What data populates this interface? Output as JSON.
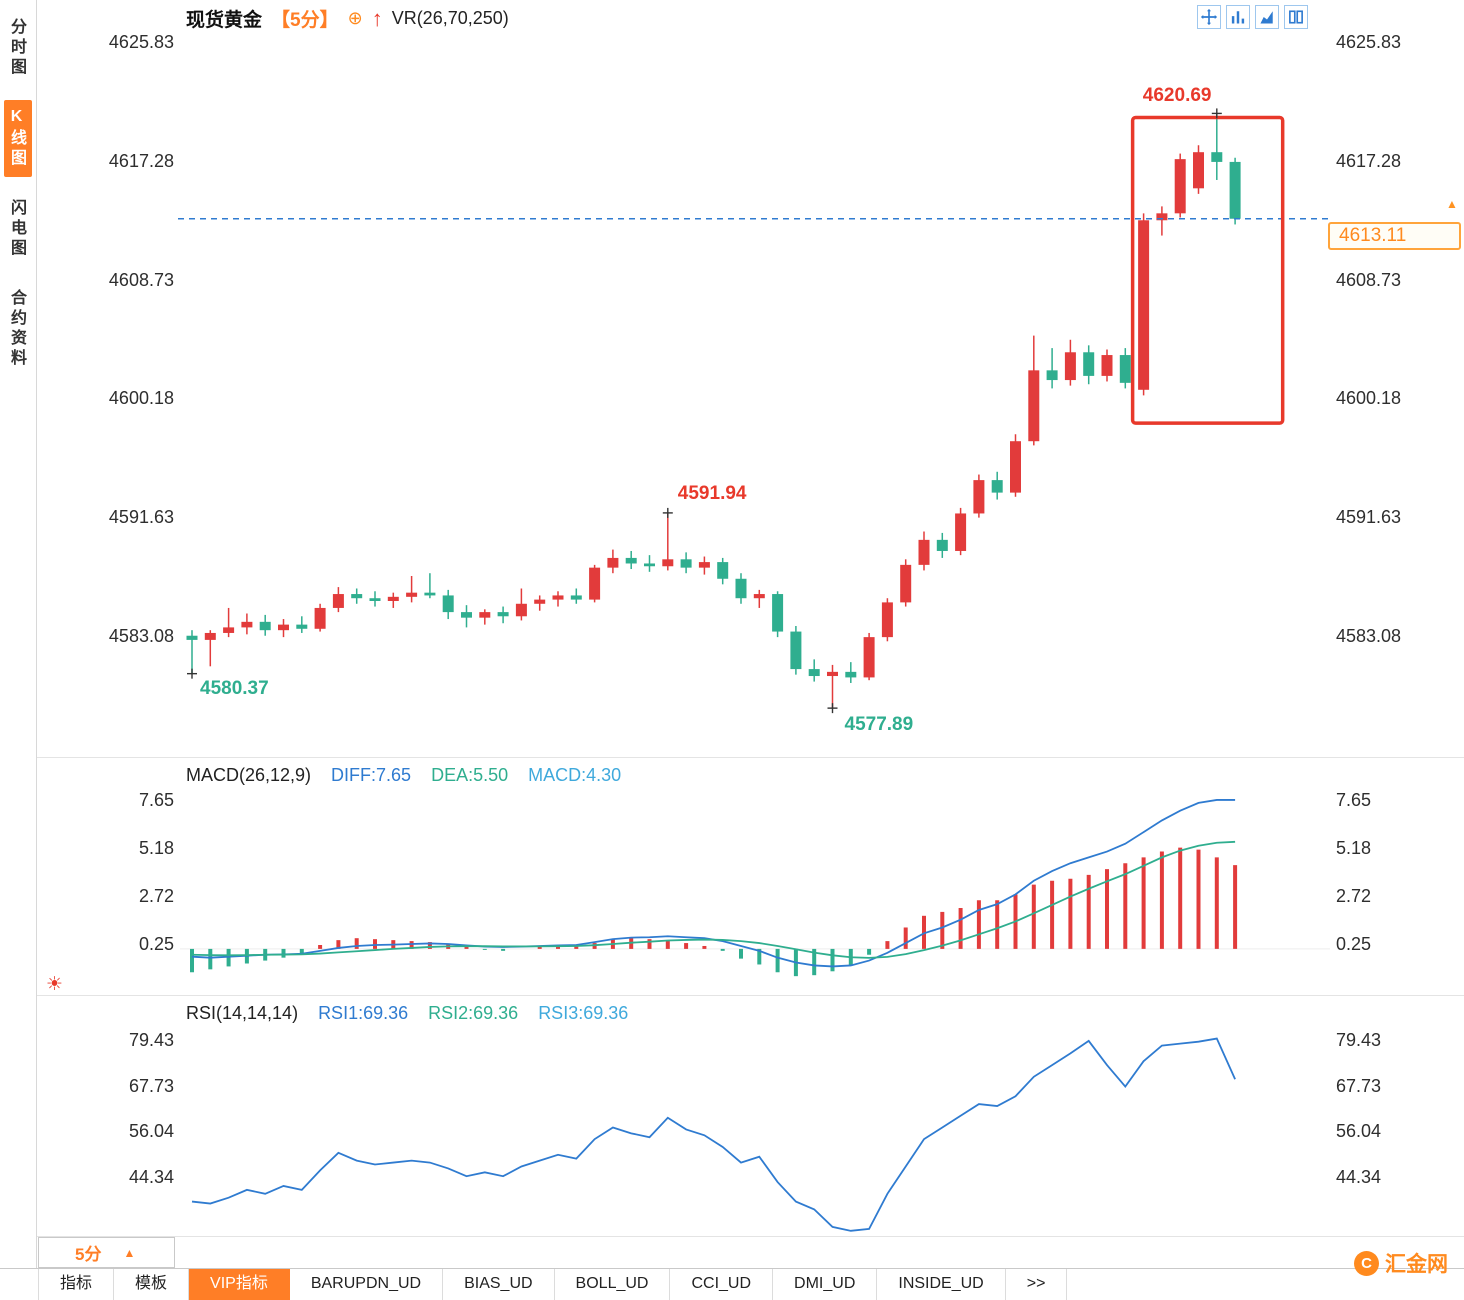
{
  "colors": {
    "up": "#e23b3b",
    "down": "#2fae8f",
    "accent_orange": "#ff7e26",
    "diff_line": "#2f7bd0",
    "dea_line": "#2fae8f",
    "macd_label": "#3fa9dc",
    "dashed_line": "#2f7bd0",
    "highlight_box": "#e8392b",
    "axis_text": "#2e2e2e"
  },
  "icons": {
    "settings": "☀"
  },
  "sidebar": {
    "items": [
      {
        "name": "time-chart",
        "label": "分时图",
        "active": false
      },
      {
        "name": "kline-chart",
        "label": "K线图",
        "active": true
      },
      {
        "name": "lightning-chart",
        "label": "闪电图",
        "active": false
      },
      {
        "name": "contract-info",
        "label": "合约资料",
        "active": false
      }
    ]
  },
  "header": {
    "symbol": "现货黄金",
    "period": "【5分】",
    "plus_icon": "⊕",
    "up_arrow": "↑",
    "indicator": "VR(26,70,250)"
  },
  "toolbar_icons": [
    {
      "name": "crosshair-icon"
    },
    {
      "name": "bar-chart-icon"
    },
    {
      "name": "area-chart-icon"
    },
    {
      "name": "compare-columns-icon"
    }
  ],
  "price_tag": {
    "value": "4613.11",
    "marker": "▲"
  },
  "bottom": {
    "period_label": "5分",
    "period_arrow": "▲",
    "tabs": [
      {
        "name": "indicators",
        "label": "指标"
      },
      {
        "name": "templates",
        "label": "模板"
      },
      {
        "name": "vip-indicators",
        "label": "VIP指标",
        "active": true
      },
      {
        "name": "barupdn-ud",
        "label": "BARUPDN_UD"
      },
      {
        "name": "bias-ud",
        "label": "BIAS_UD"
      },
      {
        "name": "boll-ud",
        "label": "BOLL_UD"
      },
      {
        "name": "cci-ud",
        "label": "CCI_UD"
      },
      {
        "name": "dmi-ud",
        "label": "DMI_UD"
      },
      {
        "name": "inside-ud",
        "label": "INSIDE_UD"
      },
      {
        "name": "more",
        "label": ">>"
      }
    ]
  },
  "logo": {
    "icon": "C",
    "text": "汇金网"
  },
  "chart_data": [
    {
      "type": "candlestick",
      "title": "现货黄金 5分",
      "y_ticks": [
        4625.83,
        4617.28,
        4608.73,
        4600.18,
        4591.63,
        4583.08
      ],
      "current_price": 4613.11,
      "candles": [
        [
          4583.1,
          4583.5,
          4580.37,
          4582.8
        ],
        [
          4582.8,
          4583.5,
          4580.9,
          4583.3
        ],
        [
          4583.3,
          4585.1,
          4583.0,
          4583.7
        ],
        [
          4583.7,
          4584.7,
          4583.2,
          4584.1
        ],
        [
          4584.1,
          4584.6,
          4583.1,
          4583.5
        ],
        [
          4583.5,
          4584.3,
          4583.0,
          4583.9
        ],
        [
          4583.9,
          4584.5,
          4583.3,
          4583.6
        ],
        [
          4583.6,
          4585.4,
          4583.4,
          4585.1
        ],
        [
          4585.1,
          4586.6,
          4584.8,
          4586.1
        ],
        [
          4586.1,
          4586.5,
          4585.4,
          4585.8
        ],
        [
          4585.8,
          4586.3,
          4585.2,
          4585.6
        ],
        [
          4585.6,
          4586.2,
          4585.1,
          4585.9
        ],
        [
          4585.9,
          4587.4,
          4585.5,
          4586.2
        ],
        [
          4586.2,
          4587.6,
          4585.8,
          4586.0
        ],
        [
          4586.0,
          4586.4,
          4584.3,
          4584.8
        ],
        [
          4584.8,
          4585.3,
          4583.7,
          4584.4
        ],
        [
          4584.4,
          4585.0,
          4583.9,
          4584.8
        ],
        [
          4584.8,
          4585.2,
          4584.0,
          4584.5
        ],
        [
          4584.5,
          4586.5,
          4584.2,
          4585.4
        ],
        [
          4585.4,
          4586.0,
          4584.9,
          4585.7
        ],
        [
          4585.7,
          4586.3,
          4585.2,
          4586.0
        ],
        [
          4586.0,
          4586.5,
          4585.4,
          4585.7
        ],
        [
          4585.7,
          4588.2,
          4585.5,
          4588.0
        ],
        [
          4588.0,
          4589.3,
          4587.6,
          4588.7
        ],
        [
          4588.7,
          4589.2,
          4587.9,
          4588.3
        ],
        [
          4588.3,
          4588.9,
          4587.7,
          4588.1
        ],
        [
          4588.1,
          4591.94,
          4587.8,
          4588.6
        ],
        [
          4588.6,
          4589.1,
          4587.6,
          4588.0
        ],
        [
          4588.0,
          4588.8,
          4587.5,
          4588.4
        ],
        [
          4588.4,
          4588.7,
          4586.8,
          4587.2
        ],
        [
          4587.2,
          4587.6,
          4585.4,
          4585.8
        ],
        [
          4585.8,
          4586.4,
          4585.1,
          4586.1
        ],
        [
          4586.1,
          4586.3,
          4583.0,
          4583.4
        ],
        [
          4583.4,
          4583.8,
          4580.3,
          4580.7
        ],
        [
          4580.7,
          4581.4,
          4579.8,
          4580.2
        ],
        [
          4580.2,
          4581.0,
          4577.89,
          4580.5
        ],
        [
          4580.5,
          4581.2,
          4579.7,
          4580.1
        ],
        [
          4580.1,
          4583.3,
          4579.9,
          4583.0
        ],
        [
          4583.0,
          4585.8,
          4582.7,
          4585.5
        ],
        [
          4585.5,
          4588.6,
          4585.2,
          4588.2
        ],
        [
          4588.2,
          4590.6,
          4587.8,
          4590.0
        ],
        [
          4590.0,
          4590.5,
          4588.7,
          4589.2
        ],
        [
          4589.2,
          4592.3,
          4588.9,
          4591.9
        ],
        [
          4591.9,
          4594.7,
          4591.6,
          4594.3
        ],
        [
          4594.3,
          4594.9,
          4592.9,
          4593.4
        ],
        [
          4593.4,
          4597.6,
          4593.1,
          4597.1
        ],
        [
          4597.1,
          4604.7,
          4596.8,
          4602.2
        ],
        [
          4602.2,
          4603.8,
          4600.9,
          4601.5
        ],
        [
          4601.5,
          4604.4,
          4601.1,
          4603.5
        ],
        [
          4603.5,
          4604.0,
          4601.2,
          4601.8
        ],
        [
          4601.8,
          4603.7,
          4601.4,
          4603.3
        ],
        [
          4603.3,
          4603.8,
          4600.9,
          4601.3
        ],
        [
          4600.8,
          4613.5,
          4600.4,
          4613.0
        ],
        [
          4613.0,
          4614.0,
          4611.9,
          4613.5
        ],
        [
          4613.5,
          4617.8,
          4613.2,
          4617.4
        ],
        [
          4615.3,
          4618.4,
          4614.9,
          4617.9
        ],
        [
          4617.9,
          4620.69,
          4615.9,
          4617.2
        ],
        [
          4617.2,
          4617.5,
          4612.7,
          4613.11
        ]
      ],
      "annotations": [
        {
          "index": 0,
          "price": 4580.37,
          "text": "4580.37",
          "color": "green"
        },
        {
          "index": 26,
          "price": 4591.94,
          "text": "4591.94",
          "color": "red"
        },
        {
          "index": 35,
          "price": 4577.89,
          "text": "4577.89",
          "color": "green"
        },
        {
          "index": 56,
          "price": 4620.69,
          "text": "4620.69",
          "color": "red"
        }
      ],
      "highlight_box": {
        "start_index": 51.4,
        "end_index": 59.6,
        "top_price": 4620.4,
        "bottom_price": 4598.4
      }
    },
    {
      "type": "bar",
      "label": "MACD(26,12,9)",
      "diff_label": "DIFF:7.65",
      "dea_label": "DEA:5.50",
      "macd_label": "MACD:4.30",
      "y_ticks": [
        7.65,
        5.18,
        2.72,
        0.25
      ],
      "diff": [
        -0.4,
        -0.45,
        -0.4,
        -0.35,
        -0.3,
        -0.28,
        -0.25,
        -0.1,
        0.05,
        0.15,
        0.2,
        0.22,
        0.25,
        0.28,
        0.25,
        0.18,
        0.12,
        0.1,
        0.12,
        0.15,
        0.18,
        0.2,
        0.35,
        0.5,
        0.58,
        0.6,
        0.65,
        0.6,
        0.55,
        0.4,
        0.15,
        -0.1,
        -0.45,
        -0.7,
        -0.85,
        -0.9,
        -0.85,
        -0.6,
        -0.2,
        0.3,
        0.8,
        1.1,
        1.5,
        2.0,
        2.3,
        2.8,
        3.5,
        4.0,
        4.4,
        4.7,
        5.0,
        5.4,
        6.0,
        6.6,
        7.1,
        7.5,
        7.65,
        7.65
      ],
      "dea": [
        -0.3,
        -0.32,
        -0.33,
        -0.32,
        -0.3,
        -0.29,
        -0.28,
        -0.24,
        -0.18,
        -0.12,
        -0.06,
        0.0,
        0.05,
        0.1,
        0.13,
        0.14,
        0.14,
        0.13,
        0.13,
        0.13,
        0.14,
        0.15,
        0.19,
        0.25,
        0.32,
        0.37,
        0.43,
        0.46,
        0.48,
        0.46,
        0.4,
        0.3,
        0.15,
        -0.02,
        -0.19,
        -0.33,
        -0.43,
        -0.46,
        -0.41,
        -0.27,
        -0.06,
        0.17,
        0.44,
        0.75,
        1.06,
        1.41,
        1.83,
        2.26,
        2.69,
        3.09,
        3.47,
        3.84,
        4.27,
        4.7,
        5.05,
        5.3,
        5.45,
        5.5
      ],
      "hist": [
        -1.2,
        -1.05,
        -0.9,
        -0.75,
        -0.6,
        -0.45,
        -0.3,
        0.2,
        0.45,
        0.55,
        0.5,
        0.45,
        0.4,
        0.35,
        0.25,
        0.1,
        -0.05,
        -0.1,
        0.0,
        0.1,
        0.15,
        0.12,
        0.3,
        0.5,
        0.55,
        0.5,
        0.45,
        0.3,
        0.15,
        -0.1,
        -0.5,
        -0.8,
        -1.2,
        -1.4,
        -1.35,
        -1.15,
        -0.85,
        -0.3,
        0.4,
        1.1,
        1.7,
        1.9,
        2.1,
        2.5,
        2.5,
        2.8,
        3.3,
        3.5,
        3.6,
        3.8,
        4.1,
        4.4,
        4.7,
        5.0,
        5.2,
        5.1,
        4.7,
        4.3
      ]
    },
    {
      "type": "line",
      "label": "RSI(14,14,14)",
      "rsi1_label": "RSI1:69.36",
      "rsi2_label": "RSI2:69.36",
      "rsi3_label": "RSI3:69.36",
      "y_ticks": [
        79.43,
        67.73,
        56.04,
        44.34
      ],
      "rsi": [
        38,
        37.5,
        39,
        41,
        40,
        42,
        41,
        46,
        50.5,
        48.5,
        47.5,
        48,
        48.5,
        48,
        46.5,
        44.5,
        45.5,
        44.5,
        47,
        48.5,
        50,
        49,
        54,
        57,
        55.5,
        54.5,
        59.5,
        56.5,
        55,
        52,
        48,
        49.5,
        43,
        38,
        36,
        31.5,
        30.5,
        31,
        40,
        47,
        54,
        57,
        60,
        63,
        62.5,
        65,
        70,
        73,
        76,
        79.2,
        73,
        67.5,
        74,
        78,
        78.5,
        79,
        79.8,
        69.36
      ]
    }
  ]
}
